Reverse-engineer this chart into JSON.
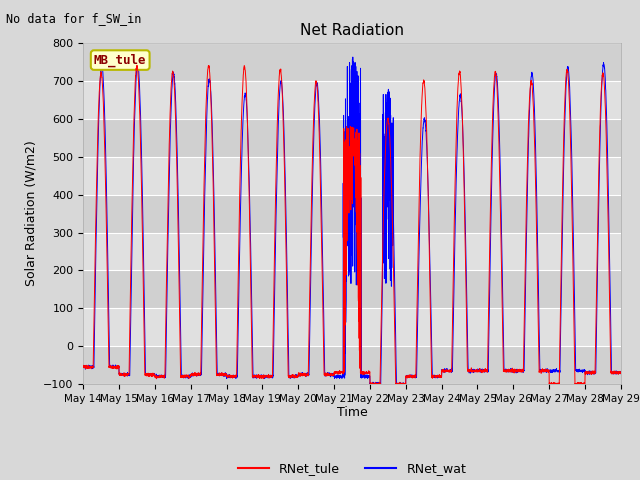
{
  "title": "Net Radiation",
  "top_left_text": "No data for f_SW_in",
  "ylabel": "Solar Radiation (W/m2)",
  "xlabel": "Time",
  "ylim": [
    -100,
    800
  ],
  "yticks": [
    -100,
    0,
    100,
    200,
    300,
    400,
    500,
    600,
    700,
    800
  ],
  "x_tick_labels": [
    "May 14",
    "May 15",
    "May 16",
    "May 17",
    "May 18",
    "May 19",
    "May 20",
    "May 21",
    "May 22",
    "May 23",
    "May 24",
    "May 25",
    "May 26",
    "May 27",
    "May 28",
    "May 29"
  ],
  "legend_entries": [
    "RNet_tule",
    "RNet_wat"
  ],
  "box_label": "MB_tule",
  "box_color": "#ffffcc",
  "box_edge_color": "#b8b800",
  "background_color": "#d8d8d8",
  "plot_bg_color": "#d8d8d8",
  "grid_color": "white",
  "n_days": 15,
  "figsize": [
    6.4,
    4.8
  ],
  "dpi": 100,
  "peak_red": [
    720,
    740,
    725,
    740,
    738,
    730,
    700,
    580,
    600,
    700,
    725,
    725,
    700,
    730,
    720
  ],
  "peak_blue": [
    740,
    745,
    720,
    705,
    665,
    700,
    695,
    760,
    675,
    600,
    660,
    720,
    720,
    735,
    745
  ],
  "trough_red": [
    -55,
    -75,
    -80,
    -75,
    -80,
    -80,
    -75,
    -70,
    -100,
    -80,
    -65,
    -65,
    -65,
    -100,
    -70
  ],
  "trough_blue": [
    -55,
    -75,
    -80,
    -75,
    -80,
    -80,
    -75,
    -80,
    -100,
    -80,
    -65,
    -65,
    -65,
    -65,
    -70
  ],
  "day_offset_red": [
    0.0,
    0.0,
    0.0,
    0.0,
    0.0,
    0.0,
    0.0,
    0.0,
    0.0,
    0.0,
    0.0,
    0.0,
    0.0,
    0.0,
    0.0
  ],
  "day_offset_blue": [
    0.02,
    0.02,
    0.02,
    0.02,
    0.02,
    0.02,
    0.02,
    0.02,
    0.02,
    0.02,
    0.02,
    0.02,
    0.02,
    0.02,
    0.02
  ],
  "band_colors": [
    "#d0d0d0",
    "#e0e0e0"
  ],
  "pts_per_day": 288
}
